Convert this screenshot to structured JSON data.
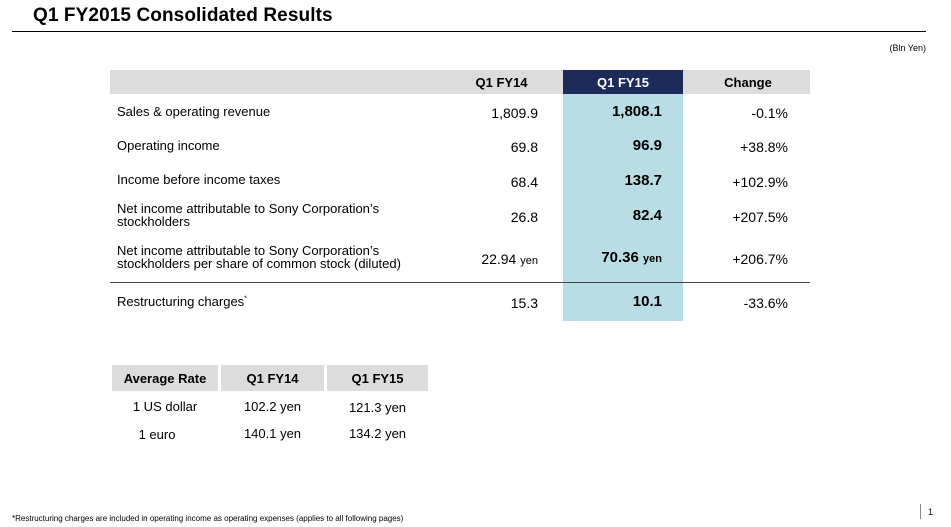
{
  "title": "Q1 FY2015  Consolidated Results",
  "units": "(Bln Yen)",
  "results": {
    "headers": {
      "col1": "Q1 FY14",
      "col2": "Q1 FY15",
      "col3": "Change"
    },
    "rows": [
      {
        "label": "Sales & operating revenue",
        "fy14": "1,809.9",
        "fy15": "1,808.1",
        "change": "-0.1%"
      },
      {
        "label": "Operating income",
        "fy14": "69.8",
        "fy15": "96.9",
        "change": "+38.8%"
      },
      {
        "label": "Income before income taxes",
        "fy14": "68.4",
        "fy15": "138.7",
        "change": "+102.9%"
      },
      {
        "label_line1": "Net income attributable to Sony Corporation’s",
        "label_line2": "stockholders",
        "fy14": "26.8",
        "fy15": "82.4",
        "change": "+207.5%"
      },
      {
        "label_line1": "Net income attributable to Sony Corporation’s",
        "label_line2": "stockholders per share of common stock (diluted)",
        "fy14": "22.94",
        "fy15": "70.36",
        "unit": "yen",
        "change": "+206.7%"
      },
      {
        "label": "Restructuring charges",
        "marker": "*",
        "fy14": "15.3",
        "fy15": "10.1",
        "change": "-33.6%"
      }
    ]
  },
  "rates": {
    "headers": {
      "label": "Average Rate",
      "col1": "Q1 FY14",
      "col2": "Q1 FY15"
    },
    "rows": [
      {
        "label": "1 US dollar",
        "fy14": "102.2 yen",
        "fy15": "121.3 yen"
      },
      {
        "label": "1 euro",
        "fy14": "140.1 yen",
        "fy15": "134.2 yen"
      }
    ]
  },
  "footnote": "*Restructuring charges are included in operating income as operating expenses (applies to all following pages)",
  "page_number": "1",
  "colors": {
    "header_gray": "#dcdcdc",
    "highlight_navy": "#1e2a5a",
    "highlight_teal": "#b9dde4"
  }
}
